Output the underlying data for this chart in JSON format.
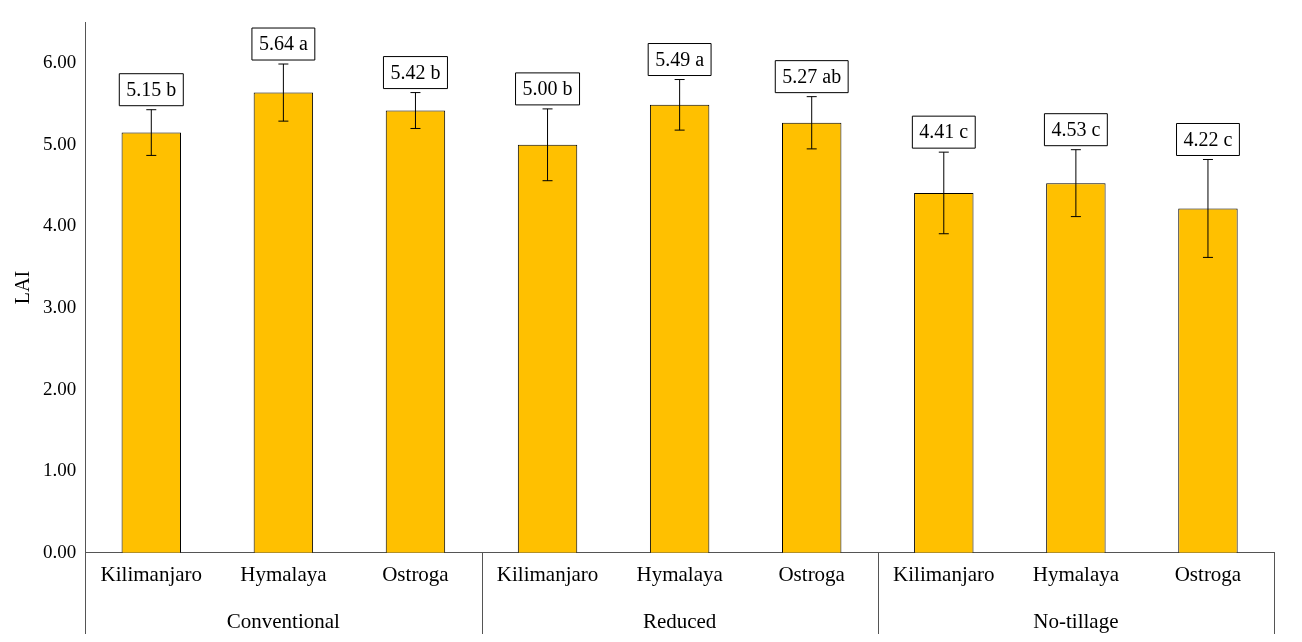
{
  "chart_data": {
    "type": "bar",
    "ylabel": "LAI",
    "categories": [
      "Kilimanjaro",
      "Hymalaya",
      "Ostroga",
      "Kilimanjaro",
      "Hymalaya",
      "Ostroga",
      "Kilimanjaro",
      "Hymalaya",
      "Ostroga"
    ],
    "values": [
      5.15,
      5.64,
      5.42,
      5.0,
      5.49,
      5.27,
      4.41,
      4.53,
      4.22
    ],
    "errors": [
      0.28,
      0.35,
      0.22,
      0.44,
      0.31,
      0.32,
      0.5,
      0.41,
      0.6
    ],
    "value_labels": [
      "5.15 b",
      "5.64 a",
      "5.42 b",
      "5.00 b",
      "5.49 a",
      "5.27 ab",
      "4.41 c",
      "4.53 c",
      "4.22 c"
    ],
    "color": "#ffc000",
    "annotations": [
      "Conventional",
      "Reduced",
      "No-tillage"
    ],
    "ylim": [
      0,
      6.5
    ],
    "yticks": [
      {
        "value": 0,
        "label": "0.00"
      },
      {
        "value": 1,
        "label": "1.00"
      },
      {
        "value": 2,
        "label": "2.00"
      },
      {
        "value": 3,
        "label": "3.00"
      },
      {
        "value": 4,
        "label": "4.00"
      },
      {
        "value": 5,
        "label": "5.00"
      },
      {
        "value": 6,
        "label": "6.00"
      }
    ],
    "grid": false,
    "legend": false
  }
}
